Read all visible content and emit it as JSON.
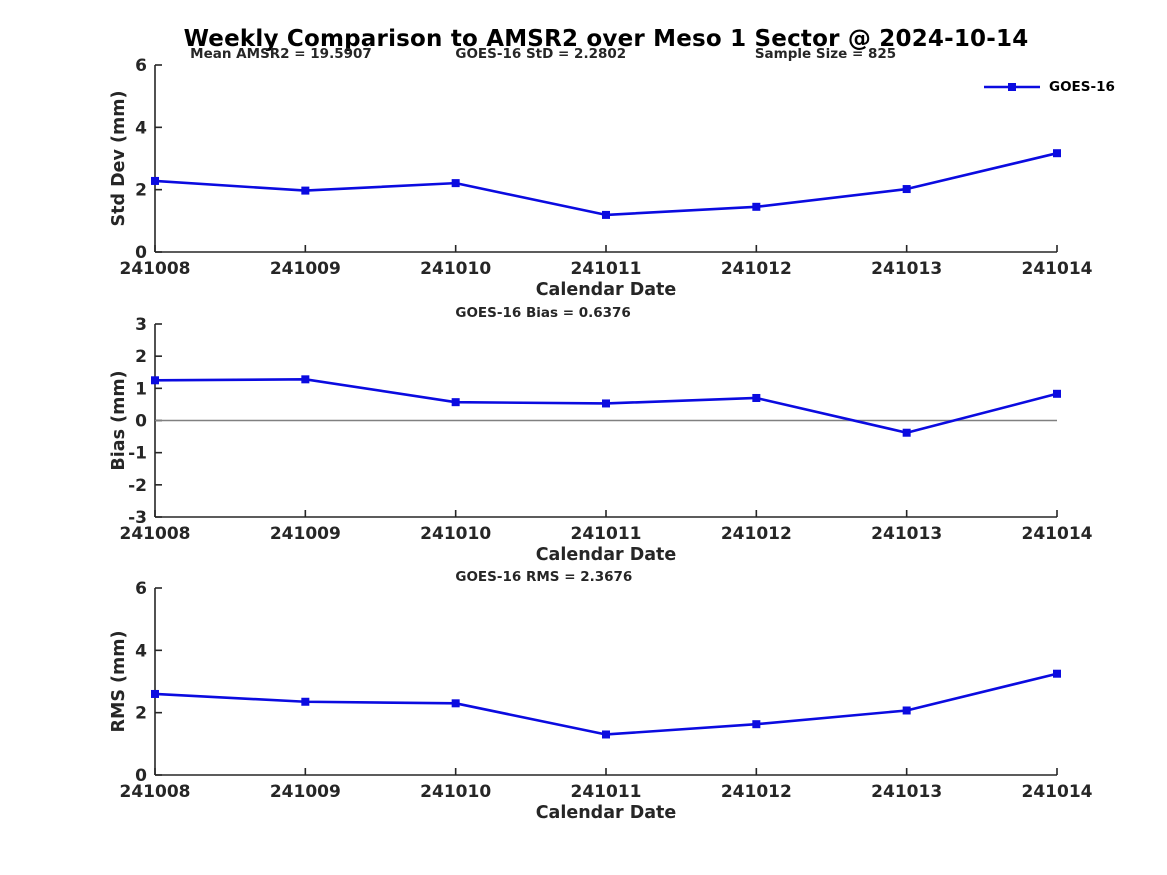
{
  "title": "Weekly Comparison to AMSR2 over Meso 1 Sector @ 2024-10-14",
  "legend": {
    "label": "GOES-16",
    "position": "top-right"
  },
  "colors": {
    "series": "#0b0be0",
    "axis": "#262626",
    "tick_text": "#262626",
    "title_text": "#000000",
    "zero_line": "#808080",
    "background": "#ffffff"
  },
  "chart_data": [
    {
      "type": "line",
      "name": "std-dev",
      "xlabel": "Calendar Date",
      "ylabel": "Std Dev (mm)",
      "ylim": [
        0,
        6
      ],
      "yticks": [
        0,
        2,
        4,
        6
      ],
      "categories": [
        "241008",
        "241009",
        "241010",
        "241011",
        "241012",
        "241013",
        "241014"
      ],
      "series": [
        {
          "name": "GOES-16",
          "values": [
            2.28,
            1.97,
            2.21,
            1.19,
            1.45,
            2.02,
            3.17
          ]
        }
      ],
      "annotations": [
        {
          "text": "Mean AMSR2 = 19.5907",
          "xfrac": 0.039
        },
        {
          "text": "GOES-16 StD = 2.2802",
          "xfrac": 0.333
        },
        {
          "text": "Sample Size = 825",
          "xfrac": 0.665
        }
      ],
      "zero_line": false,
      "grid": false
    },
    {
      "type": "line",
      "name": "bias",
      "xlabel": "Calendar Date",
      "ylabel": "Bias (mm)",
      "ylim": [
        -3,
        3
      ],
      "yticks": [
        -3,
        -2,
        -1,
        0,
        1,
        2,
        3
      ],
      "categories": [
        "241008",
        "241009",
        "241010",
        "241011",
        "241012",
        "241013",
        "241014"
      ],
      "series": [
        {
          "name": "GOES-16",
          "values": [
            1.25,
            1.28,
            0.57,
            0.53,
            0.7,
            -0.38,
            0.83
          ]
        }
      ],
      "annotations": [
        {
          "text": "GOES-16 Bias  = 0.6376",
          "xfrac": 0.333
        }
      ],
      "zero_line": true,
      "grid": false
    },
    {
      "type": "line",
      "name": "rms",
      "xlabel": "Calendar Date",
      "ylabel": "RMS (mm)",
      "ylim": [
        0,
        6
      ],
      "yticks": [
        0,
        2,
        4,
        6
      ],
      "categories": [
        "241008",
        "241009",
        "241010",
        "241011",
        "241012",
        "241013",
        "241014"
      ],
      "series": [
        {
          "name": "GOES-16",
          "values": [
            2.6,
            2.35,
            2.3,
            1.3,
            1.63,
            2.07,
            3.25
          ]
        }
      ],
      "annotations": [
        {
          "text": "GOES-16 RMS = 2.3676",
          "xfrac": 0.333
        }
      ],
      "zero_line": false,
      "grid": false
    }
  ]
}
